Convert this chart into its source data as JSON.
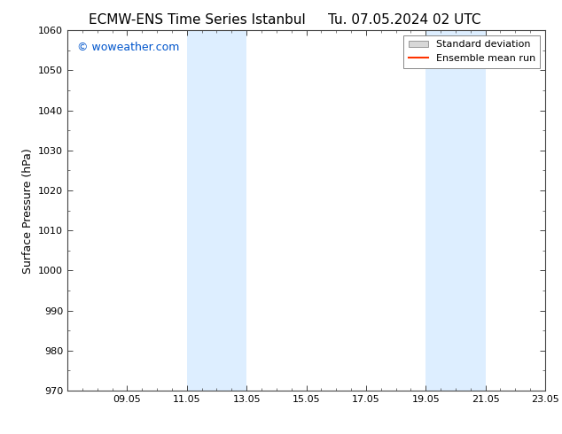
{
  "title_left": "ECMW-ENS Time Series Istanbul",
  "title_right": "Tu. 07.05.2024 02 UTC",
  "ylabel": "Surface Pressure (hPa)",
  "ylim": [
    970,
    1060
  ],
  "yticks": [
    970,
    980,
    990,
    1000,
    1010,
    1020,
    1030,
    1040,
    1050,
    1060
  ],
  "xtick_labels": [
    "09.05",
    "11.05",
    "13.05",
    "15.05",
    "17.05",
    "19.05",
    "21.05",
    "23.05"
  ],
  "xtick_positions": [
    2,
    4,
    6,
    8,
    10,
    12,
    14,
    16
  ],
  "x_min": 0,
  "x_max": 16,
  "shaded_bands": [
    {
      "x_start": 4,
      "x_end": 6
    },
    {
      "x_start": 12,
      "x_end": 14
    }
  ],
  "shaded_color": "#ddeeff",
  "background_color": "#ffffff",
  "watermark_text": "© woweather.com",
  "watermark_color": "#0055cc",
  "legend_std_label": "Standard deviation",
  "legend_mean_label": "Ensemble mean run",
  "legend_std_facecolor": "#d8d8d8",
  "legend_std_edgecolor": "#999999",
  "legend_mean_color": "#ff3300",
  "axis_line_color": "#444444",
  "title_fontsize": 11,
  "tick_label_fontsize": 8,
  "ylabel_fontsize": 9,
  "watermark_fontsize": 9,
  "legend_fontsize": 8
}
